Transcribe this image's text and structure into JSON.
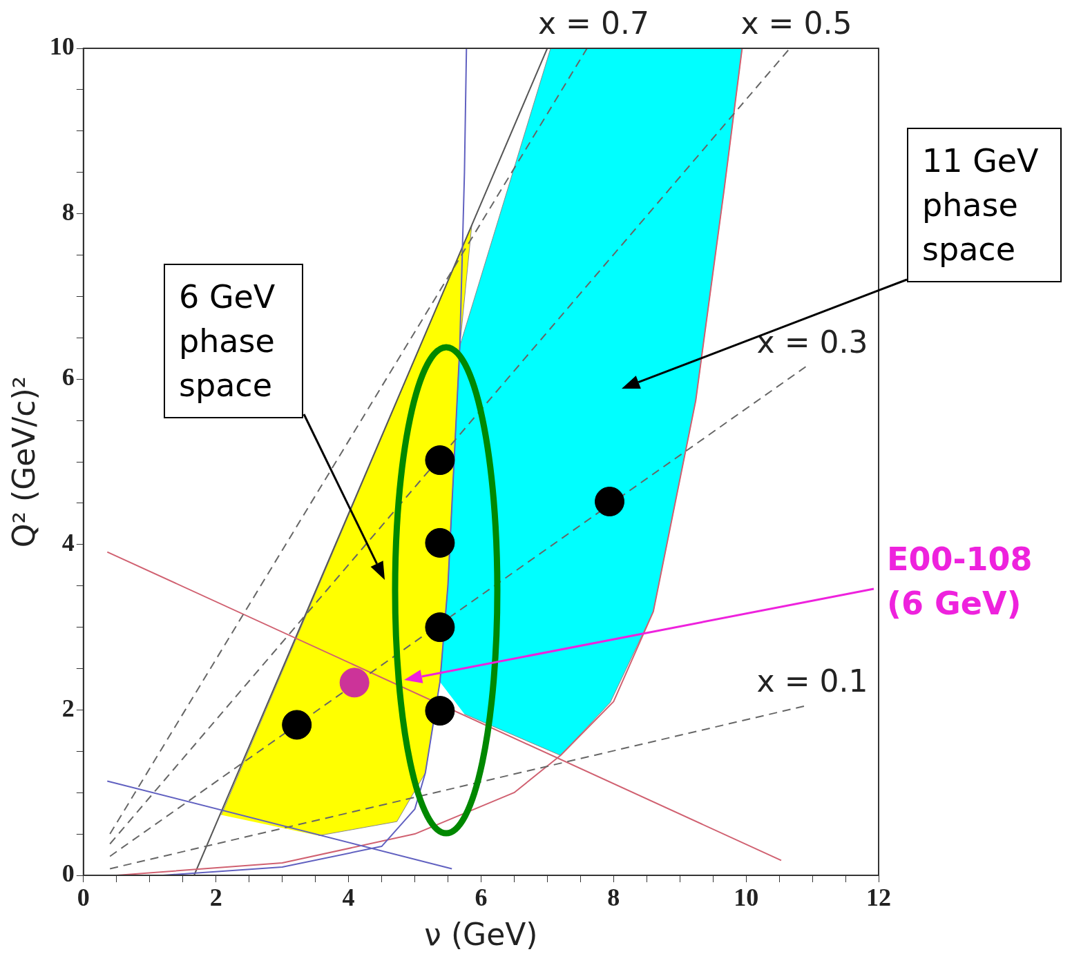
{
  "chart_data": {
    "type": "scatter",
    "xlabel": "ν (GeV)",
    "ylabel": "Q² (GeV/c)²",
    "xlim": [
      0,
      12
    ],
    "ylim": [
      0,
      10
    ],
    "xticks": [
      0,
      {
        "value": 0.5,
        "label": null
      },
      {
        "value": 1,
        "label": null
      },
      {
        "value": 1.5,
        "label": null
      },
      2,
      {
        "value": 2.5,
        "label": null
      },
      {
        "value": 3,
        "label": null
      },
      {
        "value": 3.5,
        "label": null
      },
      4,
      {
        "value": 4.5,
        "label": null
      },
      {
        "value": 5,
        "label": null
      },
      {
        "value": 5.5,
        "label": null
      },
      6,
      {
        "value": 6.5,
        "label": null
      },
      {
        "value": 7,
        "label": null
      },
      {
        "value": 7.5,
        "label": null
      },
      8,
      {
        "value": 8.5,
        "label": null
      },
      {
        "value": 9,
        "label": null
      },
      {
        "value": 9.5,
        "label": null
      },
      10,
      {
        "value": 10.5,
        "label": null
      },
      {
        "value": 11,
        "label": null
      },
      {
        "value": 11.5,
        "label": null
      },
      12
    ],
    "yticks": [
      0,
      {
        "value": 0.5,
        "label": null
      },
      {
        "value": 1,
        "label": null
      },
      {
        "value": 1.5,
        "label": null
      },
      2,
      {
        "value": 2.5,
        "label": null
      },
      {
        "value": 3,
        "label": null
      },
      {
        "value": 3.5,
        "label": null
      },
      4,
      {
        "value": 4.5,
        "label": null
      },
      {
        "value": 5,
        "label": null
      },
      {
        "value": 5.5,
        "label": null
      },
      6,
      {
        "value": 6.5,
        "label": null
      },
      {
        "value": 7,
        "label": null
      },
      {
        "value": 7.5,
        "label": null
      },
      8,
      {
        "value": 8.5,
        "label": null
      },
      {
        "value": 9,
        "label": null
      },
      {
        "value": 9.5,
        "label": null
      },
      10
    ],
    "grid": false,
    "legend": false,
    "series": [
      {
        "type": "area",
        "color": "#00ffff",
        "x": [
          5.38,
          5.5,
          5.68,
          7.05,
          9.94,
          9.67,
          9.24,
          8.6,
          7.95,
          7.2,
          5.75
        ],
        "values": [
          2.34,
          3.5,
          6.4,
          10,
          10,
          8.3,
          5.74,
          3.19,
          2.09,
          1.45,
          1.95
        ]
      },
      {
        "type": "area",
        "color": "#ffff00",
        "x": [
          2.08,
          5.86,
          5.68,
          5.5,
          5.38,
          5.16,
          4.73,
          3.55
        ],
        "values": [
          0.73,
          7.86,
          6.4,
          3.5,
          2.34,
          1.24,
          0.65,
          0.48
        ]
      },
      {
        "type": "line",
        "color": "#555555",
        "marker": "none",
        "line_style": "solid",
        "x": [
          1.67,
          7.0
        ],
        "values": [
          0,
          10
        ]
      },
      {
        "type": "line",
        "color": "#d06070",
        "marker": "none",
        "line_style": "solid",
        "x": [
          0.36,
          10.53
        ],
        "values": [
          3.91,
          0.18
        ]
      },
      {
        "type": "line",
        "color": "#d06070",
        "marker": "none",
        "line_style": "solid",
        "x": [
          0.5,
          3,
          5,
          6.5,
          7.2,
          8,
          8.6,
          9.24,
          9.67,
          9.94
        ],
        "values": [
          0,
          0.15,
          0.5,
          1.0,
          1.45,
          2.1,
          3.19,
          5.74,
          8.3,
          10
        ]
      },
      {
        "type": "line",
        "color": "#6060c0",
        "marker": "none",
        "line_style": "solid",
        "x": [
          0.36,
          5.56
        ],
        "values": [
          1.14,
          0.08
        ]
      },
      {
        "type": "line",
        "color": "#6060c0",
        "marker": "none",
        "line_style": "solid",
        "x": [
          1.2,
          3,
          4.5,
          5.0,
          5.16,
          5.38,
          5.5,
          5.68,
          5.75,
          5.78
        ],
        "values": [
          0,
          0.1,
          0.35,
          0.8,
          1.24,
          2.34,
          3.5,
          6.4,
          8.5,
          10
        ]
      },
      {
        "type": "line",
        "name": "x = 0.7",
        "color": "#666666",
        "marker": "none",
        "line_style": "dashed",
        "x": [
          0.4,
          7.6
        ],
        "values": [
          0.5,
          10
        ]
      },
      {
        "type": "line",
        "name": "x = 0.5",
        "color": "#666666",
        "marker": "none",
        "line_style": "dashed",
        "x": [
          0.4,
          10.66
        ],
        "values": [
          0.38,
          10
        ]
      },
      {
        "type": "line",
        "name": "x = 0.3",
        "color": "#666666",
        "marker": "none",
        "line_style": "dashed",
        "x": [
          0.4,
          10.9
        ],
        "values": [
          0.23,
          6.15
        ]
      },
      {
        "type": "line",
        "name": "x = 0.1",
        "color": "#666666",
        "marker": "none",
        "line_style": "dashed",
        "x": [
          0.4,
          10.9
        ],
        "values": [
          0.08,
          2.05
        ]
      },
      {
        "type": "scatter",
        "color": "#000000",
        "marker": "circle",
        "x": [
          3.22,
          5.38,
          5.38,
          5.38,
          5.38,
          7.94
        ],
        "values": [
          1.82,
          1.99,
          3.0,
          4.02,
          5.02,
          4.52
        ]
      },
      {
        "type": "scatter",
        "color": "#cc3399",
        "marker": "circle",
        "x": [
          4.09
        ],
        "values": [
          2.33
        ]
      }
    ],
    "annotations": [
      "6 GeV phase space",
      "11 GeV phase space",
      "E00-108 (6 GeV)"
    ]
  }
}
